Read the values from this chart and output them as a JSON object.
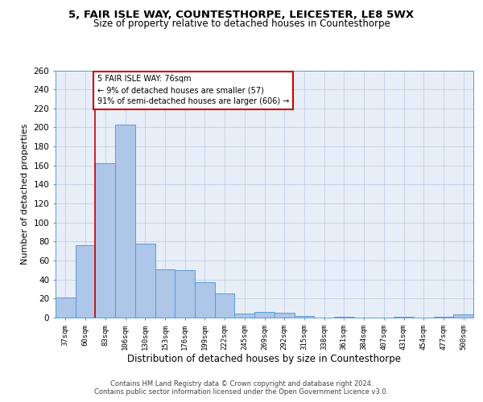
{
  "title_line1": "5, FAIR ISLE WAY, COUNTESTHORPE, LEICESTER, LE8 5WX",
  "title_line2": "Size of property relative to detached houses in Countesthorpe",
  "xlabel": "Distribution of detached houses by size in Countesthorpe",
  "ylabel": "Number of detached properties",
  "categories": [
    "37sqm",
    "60sqm",
    "83sqm",
    "106sqm",
    "130sqm",
    "153sqm",
    "176sqm",
    "199sqm",
    "222sqm",
    "245sqm",
    "269sqm",
    "292sqm",
    "315sqm",
    "338sqm",
    "361sqm",
    "384sqm",
    "407sqm",
    "431sqm",
    "454sqm",
    "477sqm",
    "500sqm"
  ],
  "values": [
    21,
    76,
    162,
    203,
    78,
    51,
    50,
    37,
    25,
    4,
    6,
    5,
    2,
    0,
    1,
    0,
    0,
    1,
    0,
    1,
    3
  ],
  "bar_color": "#aec6e8",
  "bar_edge_color": "#5b9bd5",
  "property_line_x": 1.5,
  "annotation_text": "5 FAIR ISLE WAY: 76sqm\n← 9% of detached houses are smaller (57)\n91% of semi-detached houses are larger (606) →",
  "annotation_box_color": "#ffffff",
  "annotation_border_color": "#cc0000",
  "vline_color": "#cc0000",
  "ylim": [
    0,
    260
  ],
  "yticks": [
    0,
    20,
    40,
    60,
    80,
    100,
    120,
    140,
    160,
    180,
    200,
    220,
    240,
    260
  ],
  "background_color": "#e8eef8",
  "footer_text": "Contains HM Land Registry data © Crown copyright and database right 2024.\nContains public sector information licensed under the Open Government Licence v3.0.",
  "title_fontsize": 9.5,
  "subtitle_fontsize": 8.5,
  "xlabel_fontsize": 8.5,
  "ylabel_fontsize": 8
}
